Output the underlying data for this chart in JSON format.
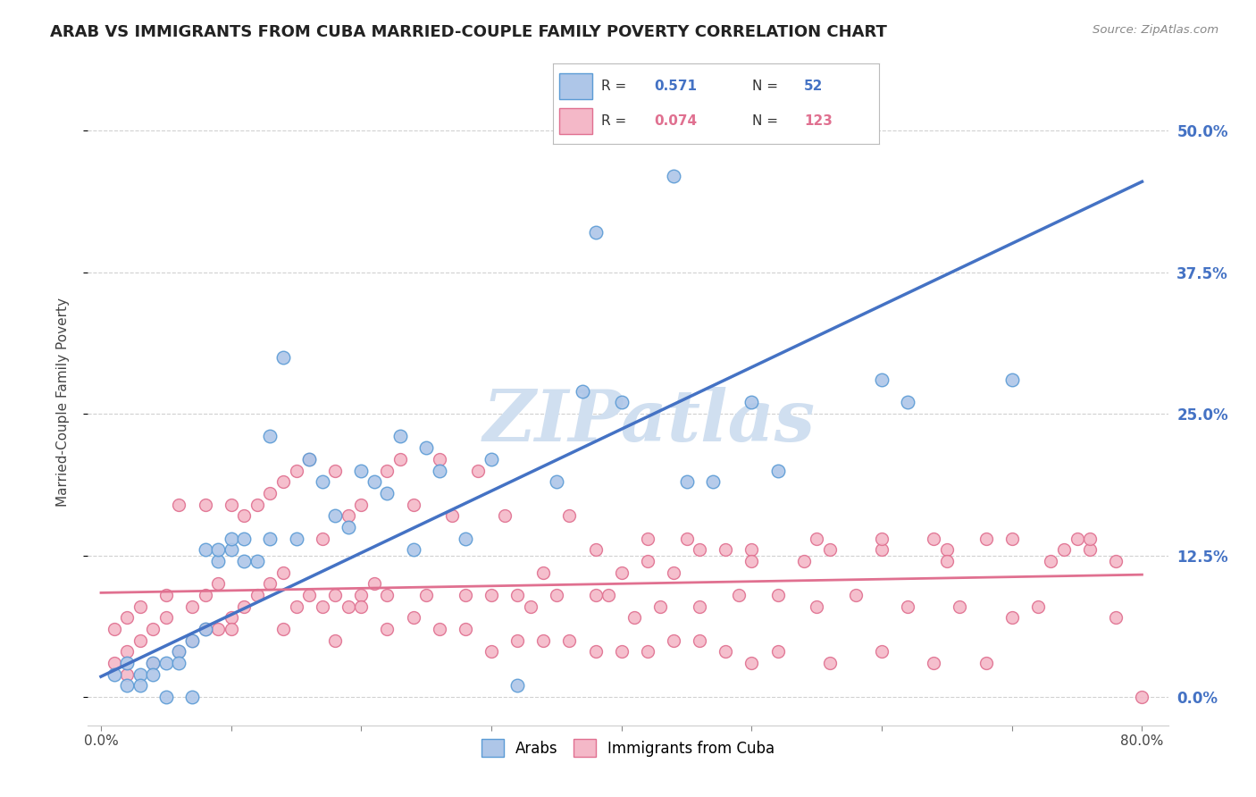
{
  "title": "ARAB VS IMMIGRANTS FROM CUBA MARRIED-COUPLE FAMILY POVERTY CORRELATION CHART",
  "source": "Source: ZipAtlas.com",
  "ylabel": "Married-Couple Family Poverty",
  "ytick_labels": [
    "0.0%",
    "12.5%",
    "25.0%",
    "37.5%",
    "50.0%"
  ],
  "ytick_values": [
    0.0,
    0.125,
    0.25,
    0.375,
    0.5
  ],
  "xlim": [
    -0.01,
    0.82
  ],
  "ylim": [
    -0.025,
    0.545
  ],
  "arab_color": "#aec6e8",
  "arab_edge_color": "#5b9bd5",
  "cuba_color": "#f4b8c8",
  "cuba_edge_color": "#e07090",
  "arab_line_color": "#4472c4",
  "cuba_line_color": "#e07090",
  "watermark_color": "#d0dff0",
  "background_color": "#ffffff",
  "grid_color": "#cccccc",
  "title_color": "#222222",
  "right_tick_color": "#4472c4",
  "legend_arab_label": "Arabs",
  "legend_cuba_label": "Immigrants from Cuba",
  "arab_line_x0": 0.0,
  "arab_line_y0": 0.018,
  "arab_line_x1": 0.8,
  "arab_line_y1": 0.455,
  "cuba_line_x0": 0.0,
  "cuba_line_y0": 0.092,
  "cuba_line_x1": 0.8,
  "cuba_line_y1": 0.108,
  "arab_x": [
    0.01,
    0.02,
    0.02,
    0.03,
    0.03,
    0.04,
    0.04,
    0.05,
    0.05,
    0.06,
    0.06,
    0.07,
    0.07,
    0.08,
    0.08,
    0.09,
    0.09,
    0.1,
    0.1,
    0.11,
    0.11,
    0.12,
    0.13,
    0.13,
    0.14,
    0.15,
    0.16,
    0.17,
    0.18,
    0.19,
    0.2,
    0.21,
    0.22,
    0.23,
    0.24,
    0.25,
    0.26,
    0.28,
    0.3,
    0.32,
    0.35,
    0.37,
    0.38,
    0.4,
    0.44,
    0.45,
    0.47,
    0.5,
    0.52,
    0.6,
    0.62,
    0.7
  ],
  "arab_y": [
    0.02,
    0.01,
    0.03,
    0.02,
    0.01,
    0.03,
    0.02,
    0.03,
    0.0,
    0.04,
    0.03,
    0.05,
    0.0,
    0.06,
    0.13,
    0.12,
    0.13,
    0.13,
    0.14,
    0.14,
    0.12,
    0.12,
    0.14,
    0.23,
    0.3,
    0.14,
    0.21,
    0.19,
    0.16,
    0.15,
    0.2,
    0.19,
    0.18,
    0.23,
    0.13,
    0.22,
    0.2,
    0.14,
    0.21,
    0.01,
    0.19,
    0.27,
    0.41,
    0.26,
    0.46,
    0.19,
    0.19,
    0.26,
    0.2,
    0.28,
    0.26,
    0.28
  ],
  "cuba_x": [
    0.01,
    0.01,
    0.02,
    0.02,
    0.02,
    0.03,
    0.03,
    0.04,
    0.04,
    0.05,
    0.05,
    0.06,
    0.06,
    0.07,
    0.07,
    0.08,
    0.08,
    0.09,
    0.09,
    0.1,
    0.1,
    0.11,
    0.11,
    0.12,
    0.12,
    0.13,
    0.13,
    0.14,
    0.14,
    0.15,
    0.15,
    0.16,
    0.16,
    0.17,
    0.17,
    0.18,
    0.18,
    0.19,
    0.19,
    0.2,
    0.2,
    0.21,
    0.22,
    0.22,
    0.23,
    0.24,
    0.25,
    0.26,
    0.27,
    0.28,
    0.29,
    0.3,
    0.31,
    0.32,
    0.33,
    0.34,
    0.35,
    0.36,
    0.38,
    0.39,
    0.4,
    0.41,
    0.42,
    0.43,
    0.44,
    0.45,
    0.46,
    0.48,
    0.49,
    0.5,
    0.52,
    0.54,
    0.55,
    0.56,
    0.58,
    0.6,
    0.62,
    0.64,
    0.65,
    0.66,
    0.68,
    0.7,
    0.72,
    0.74,
    0.75,
    0.76,
    0.78,
    0.38,
    0.42,
    0.5,
    0.55,
    0.6,
    0.65,
    0.7,
    0.08,
    0.1,
    0.14,
    0.18,
    0.22,
    0.26,
    0.3,
    0.34,
    0.38,
    0.42,
    0.46,
    0.5,
    0.2,
    0.24,
    0.28,
    0.32,
    0.36,
    0.4,
    0.44,
    0.48,
    0.52,
    0.56,
    0.6,
    0.64,
    0.68,
    0.73,
    0.76,
    0.78,
    0.8,
    0.46
  ],
  "cuba_y": [
    0.03,
    0.06,
    0.07,
    0.04,
    0.02,
    0.05,
    0.08,
    0.06,
    0.03,
    0.07,
    0.09,
    0.04,
    0.17,
    0.08,
    0.05,
    0.09,
    0.17,
    0.06,
    0.1,
    0.07,
    0.17,
    0.08,
    0.16,
    0.09,
    0.17,
    0.1,
    0.18,
    0.11,
    0.19,
    0.2,
    0.08,
    0.21,
    0.09,
    0.14,
    0.08,
    0.2,
    0.09,
    0.16,
    0.08,
    0.09,
    0.17,
    0.1,
    0.2,
    0.09,
    0.21,
    0.17,
    0.09,
    0.21,
    0.16,
    0.09,
    0.2,
    0.09,
    0.16,
    0.09,
    0.08,
    0.11,
    0.09,
    0.16,
    0.13,
    0.09,
    0.11,
    0.07,
    0.14,
    0.08,
    0.11,
    0.14,
    0.08,
    0.13,
    0.09,
    0.13,
    0.09,
    0.12,
    0.08,
    0.13,
    0.09,
    0.13,
    0.08,
    0.14,
    0.13,
    0.08,
    0.14,
    0.07,
    0.08,
    0.13,
    0.14,
    0.13,
    0.07,
    0.09,
    0.12,
    0.12,
    0.14,
    0.14,
    0.12,
    0.14,
    0.06,
    0.06,
    0.06,
    0.05,
    0.06,
    0.06,
    0.04,
    0.05,
    0.04,
    0.04,
    0.05,
    0.03,
    0.08,
    0.07,
    0.06,
    0.05,
    0.05,
    0.04,
    0.05,
    0.04,
    0.04,
    0.03,
    0.04,
    0.03,
    0.03,
    0.12,
    0.14,
    0.12,
    0.0,
    0.13
  ]
}
